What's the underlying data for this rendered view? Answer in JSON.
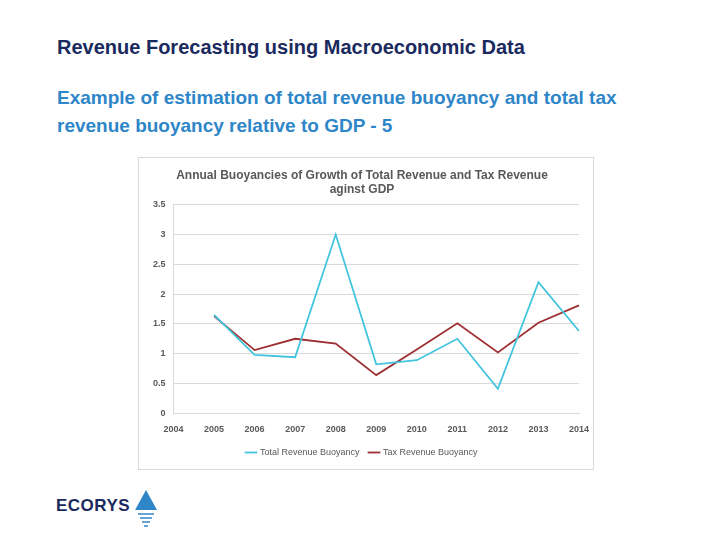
{
  "slide": {
    "title": "Revenue Forecasting using Macroeconomic Data",
    "subtitle": "Example of estimation of total revenue buoyancy and total tax revenue buoyancy relative to GDP - 5",
    "logo": "ECORYS"
  },
  "chart_data": {
    "type": "line",
    "title": [
      "Annual Buoyancies of Growth of Total Revenue and Tax Revenue",
      "aginst GDP"
    ],
    "categories": [
      "2004",
      "2005",
      "2006",
      "2007",
      "2008",
      "2009",
      "2010",
      "2011",
      "2012",
      "2013",
      "2014"
    ],
    "series": [
      {
        "name": "Total Revenue Buoyancy",
        "color": "#41c4de",
        "values": [
          null,
          1.65,
          0.98,
          0.94,
          3.0,
          0.82,
          0.89,
          1.25,
          0.41,
          2.2,
          1.38
        ]
      },
      {
        "name": "Tax Revenue Buoyancy",
        "color": "#9e2f33",
        "values": [
          null,
          1.63,
          1.06,
          1.25,
          1.17,
          0.64,
          1.07,
          1.51,
          1.02,
          1.52,
          1.81
        ]
      }
    ],
    "ylim": [
      0,
      3.5
    ],
    "yticks": [
      0,
      0.5,
      1,
      1.5,
      2,
      2.5,
      3,
      3.5
    ],
    "grid": true,
    "legend": "bottom"
  }
}
